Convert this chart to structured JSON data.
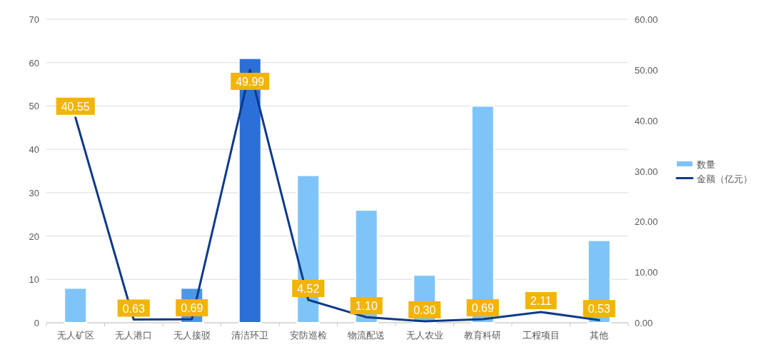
{
  "chart_data": {
    "type": "bar",
    "categories": [
      "无人矿区",
      "无人港口",
      "无人接驳",
      "清洁环卫",
      "安防巡检",
      "物流配送",
      "无人农业",
      "教育科研",
      "工程项目",
      "其他"
    ],
    "series": [
      {
        "name": "数量",
        "color": "#7fc4f8",
        "colors": [
          "#7fc4f8",
          null,
          "#4f97e6",
          "#2c6fd8",
          "#7fc4f8",
          "#7fc4f8",
          "#7fc4f8",
          "#7fc4f8",
          null,
          "#7fc4f8"
        ],
        "values": [
          8,
          null,
          8,
          61,
          34,
          26,
          11,
          50,
          null,
          19
        ]
      },
      {
        "name": "金额（亿元）",
        "type": "line",
        "axis": "y2",
        "color": "#0e3a8a",
        "values": [
          40.55,
          0.63,
          0.69,
          49.99,
          4.52,
          1.1,
          0.3,
          0.69,
          2.11,
          0.53
        ],
        "value_labels": [
          "40.55",
          "0.63",
          "0.69",
          "49.99",
          "4.52",
          "1.10",
          "0.30",
          "0.69",
          "2.11",
          "0.53"
        ]
      }
    ],
    "ylim": [
      0,
      70
    ],
    "yticks": [
      0,
      10,
      20,
      30,
      40,
      50,
      60,
      70
    ],
    "y2lim": [
      0,
      60
    ],
    "y2ticks": [
      {
        "value": 0,
        "label": "0.00"
      },
      {
        "value": 10,
        "label": "10.00"
      },
      {
        "value": 20,
        "label": "20.00"
      },
      {
        "value": 30,
        "label": "30.00"
      },
      {
        "value": 40,
        "label": "40.00"
      },
      {
        "value": 50,
        "label": "50.00"
      },
      {
        "value": 60,
        "label": "60.00"
      }
    ],
    "grid": "y",
    "legend": "right"
  }
}
